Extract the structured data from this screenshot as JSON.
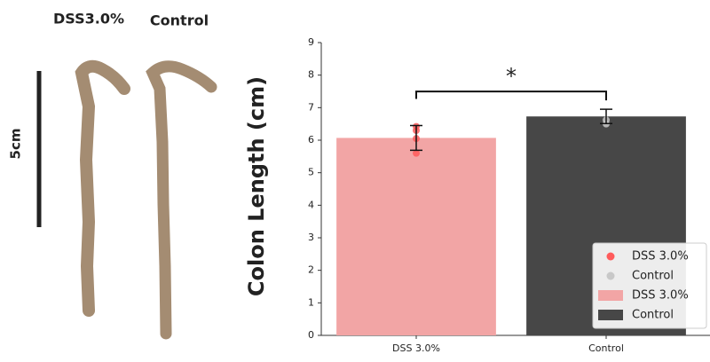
{
  "photo": {
    "labels": [
      "DSS3.0%",
      "Control"
    ],
    "scale_label": "5cm"
  },
  "chart_data": {
    "type": "bar",
    "ylabel": "Colon Length (cm)",
    "categories": [
      "DSS 3.0%",
      "Control"
    ],
    "bars": [
      {
        "name": "DSS 3.0%",
        "color": "#f2a5a5",
        "value": 6.07,
        "error": 0.38
      },
      {
        "name": "Control",
        "color": "#474747",
        "value": 6.73,
        "error": 0.22
      }
    ],
    "points": [
      {
        "name": "DSS 3.0%",
        "color": "#ff5b5b",
        "values": [
          5.6,
          6.05,
          6.3,
          6.42
        ]
      },
      {
        "name": "Control",
        "color": "#c8c8c8",
        "values": [
          6.5,
          6.62
        ]
      }
    ],
    "annotation": "*",
    "ylim": [
      0,
      9
    ],
    "yticks": [
      0,
      1,
      2,
      3,
      4,
      5,
      6,
      7,
      8,
      9
    ],
    "legend": "lower right"
  }
}
